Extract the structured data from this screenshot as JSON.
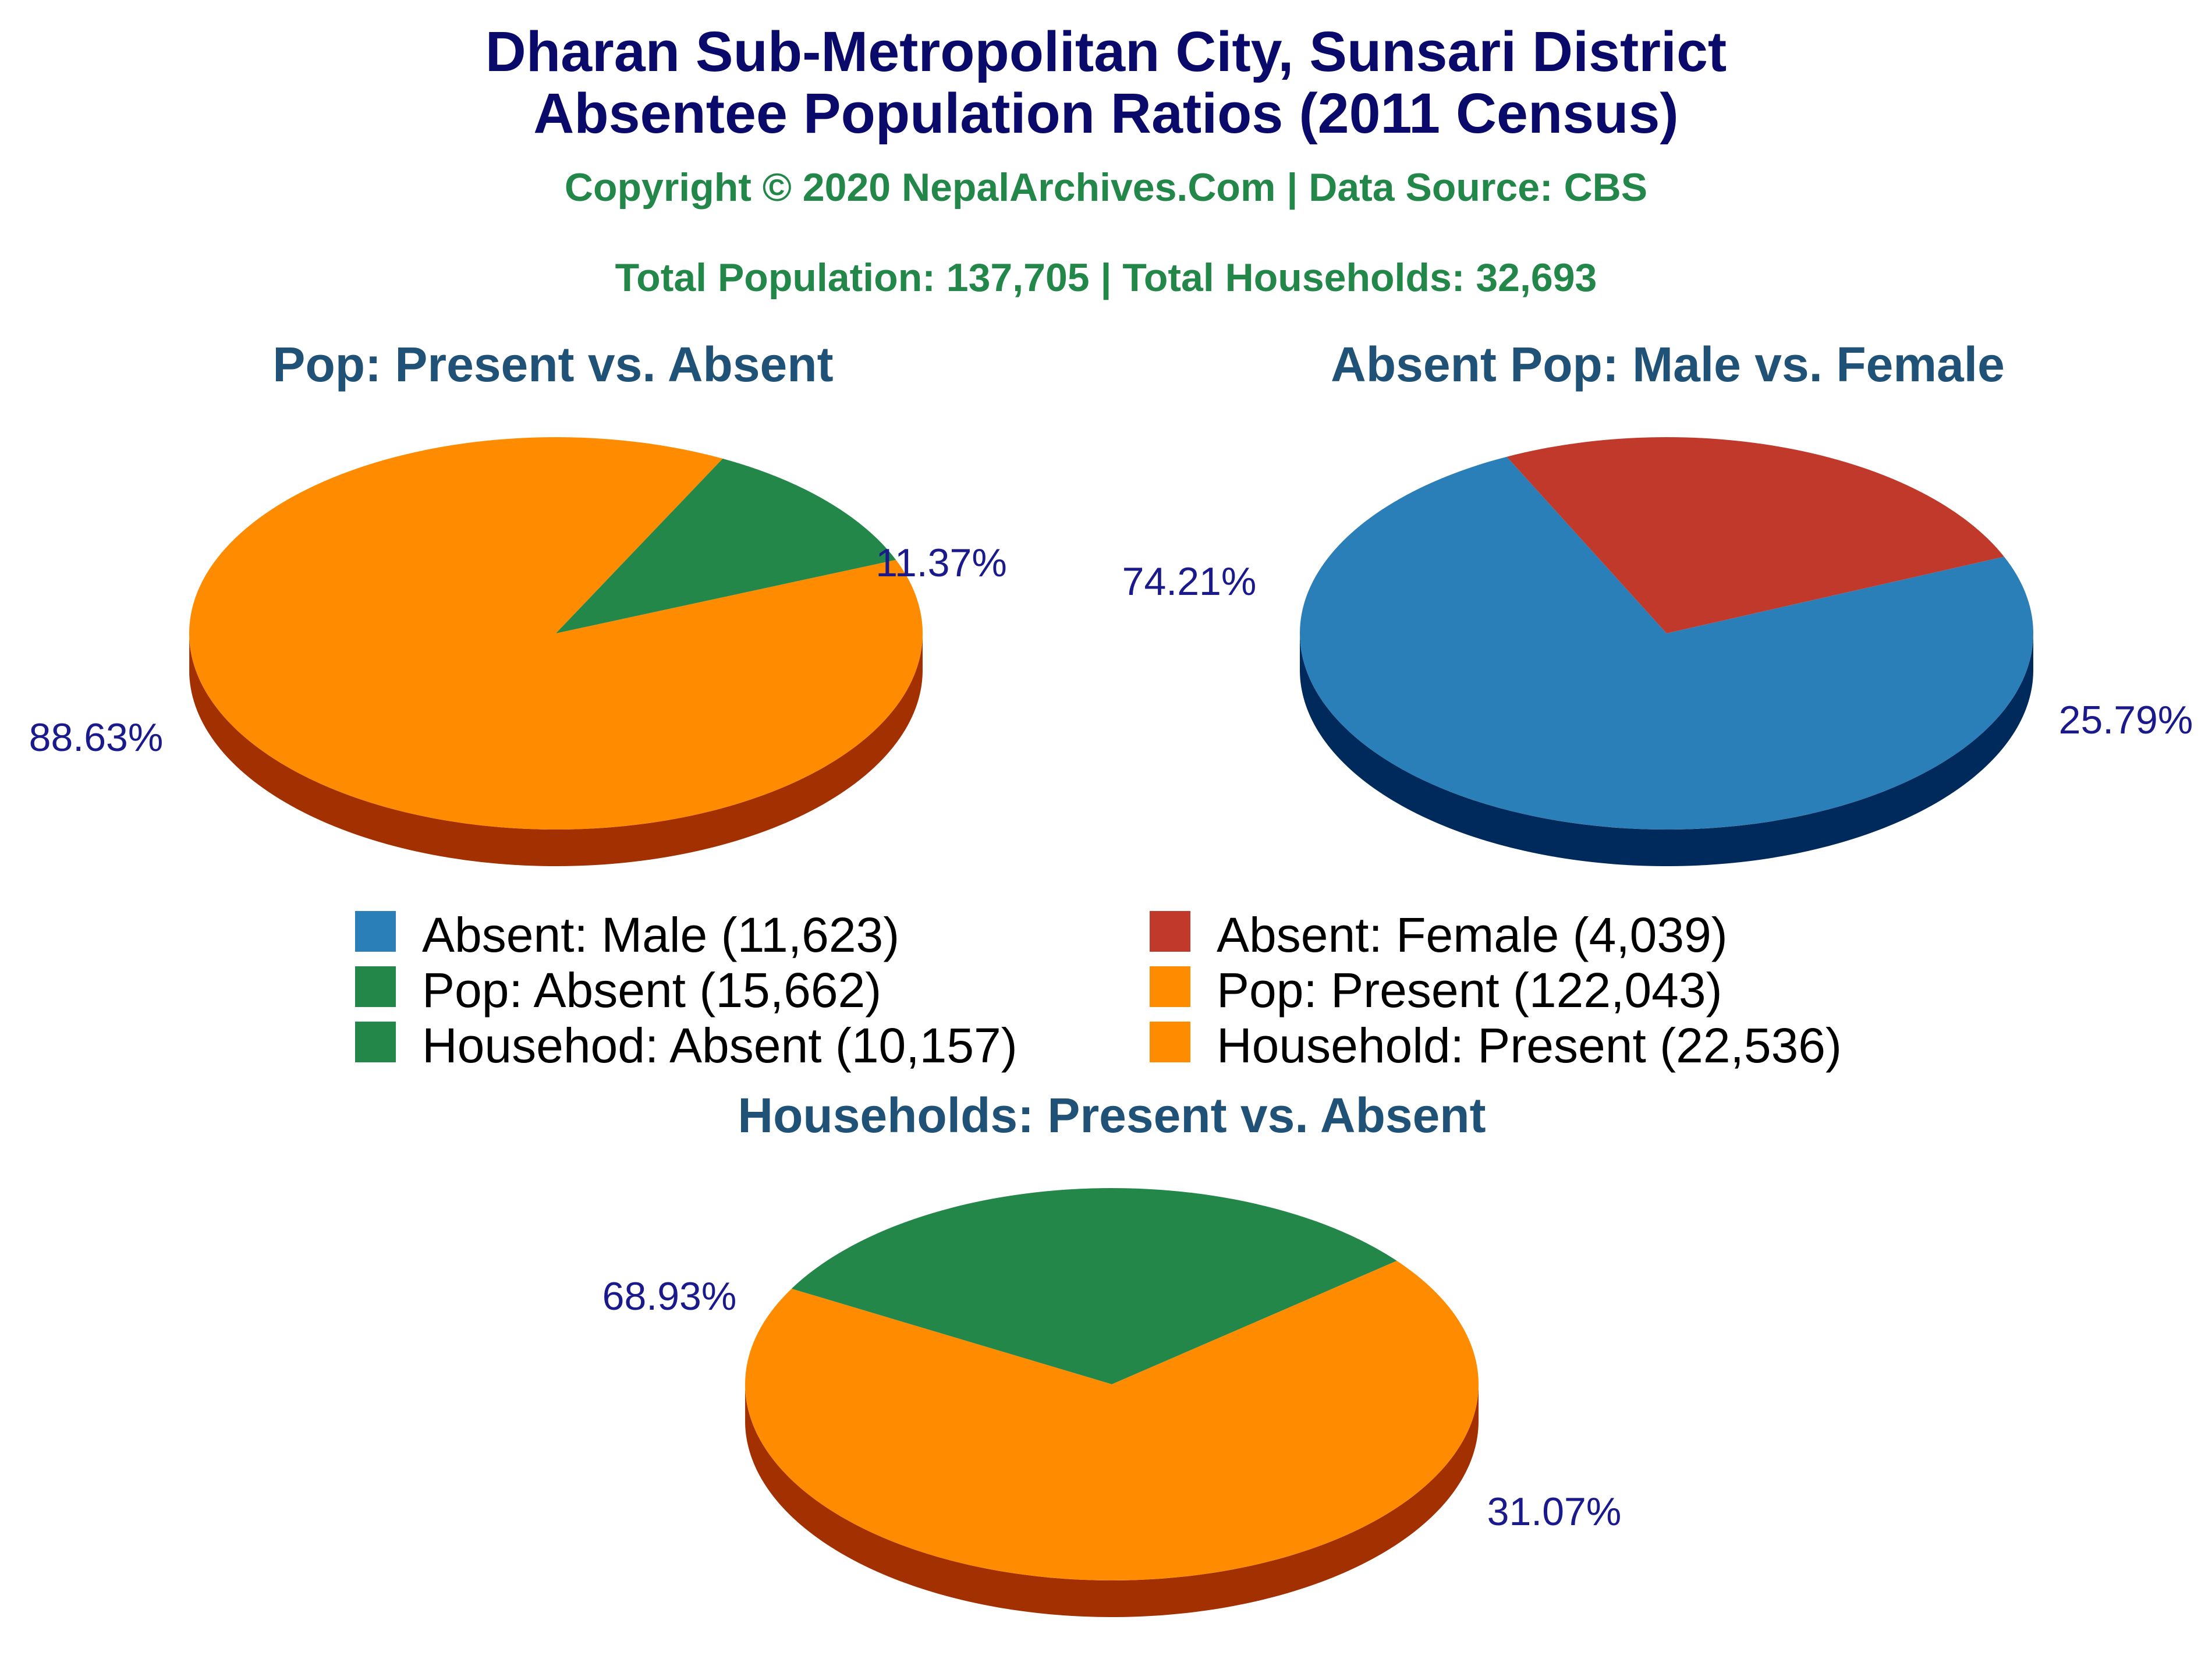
{
  "title_line1": "Dharan Sub-Metropolitan City, Sunsari District",
  "title_line2": "Absentee Population Ratios (2011 Census)",
  "copyright": "Copyright © 2020 NepalArchives.Com | Data Source: CBS",
  "totals": "Total Population: 137,705 | Total Households: 32,693",
  "colors": {
    "title": "#0a0a6b",
    "subtitle": "#23874a",
    "pie_title": "#1f5276",
    "pct_label": "#1a1a8c",
    "legend_text": "#000000"
  },
  "legend": [
    {
      "label": "Absent: Male (11,623)",
      "color": "#2b7fb9"
    },
    {
      "label": "Absent: Female (4,039)",
      "color": "#c0392b"
    },
    {
      "label": "Pop: Absent (15,662)",
      "color": "#23874a"
    },
    {
      "label": "Pop: Present (122,043)",
      "color": "#ff8c00"
    },
    {
      "label": "Househod: Absent (10,157)",
      "color": "#23874a"
    },
    {
      "label": "Household: Present (22,536)",
      "color": "#ff8c00"
    }
  ],
  "chart_data": [
    {
      "type": "pie",
      "title": "Pop: Present vs. Absent",
      "slices": [
        {
          "label": "Pop: Present",
          "value": 122043,
          "percent": "88.63%",
          "color": "#ff8c00",
          "side_color": "#a33000"
        },
        {
          "label": "Pop: Absent",
          "value": 15662,
          "percent": "11.37%",
          "color": "#23874a",
          "side_color": "#003800"
        }
      ]
    },
    {
      "type": "pie",
      "title": "Absent Pop: Male vs. Female",
      "slices": [
        {
          "label": "Absent: Male",
          "value": 11623,
          "percent": "74.21%",
          "color": "#2b7fb9",
          "side_color": "#002a5c"
        },
        {
          "label": "Absent: Female",
          "value": 4039,
          "percent": "25.79%",
          "color": "#c0392b",
          "side_color": "#660000"
        }
      ]
    },
    {
      "type": "pie",
      "title": "Households: Present vs. Absent",
      "slices": [
        {
          "label": "Household: Present",
          "value": 22536,
          "percent": "68.93%",
          "color": "#ff8c00",
          "side_color": "#a33000"
        },
        {
          "label": "Househod: Absent",
          "value": 10157,
          "percent": "31.07%",
          "color": "#23874a",
          "side_color": "#003800"
        }
      ]
    }
  ]
}
